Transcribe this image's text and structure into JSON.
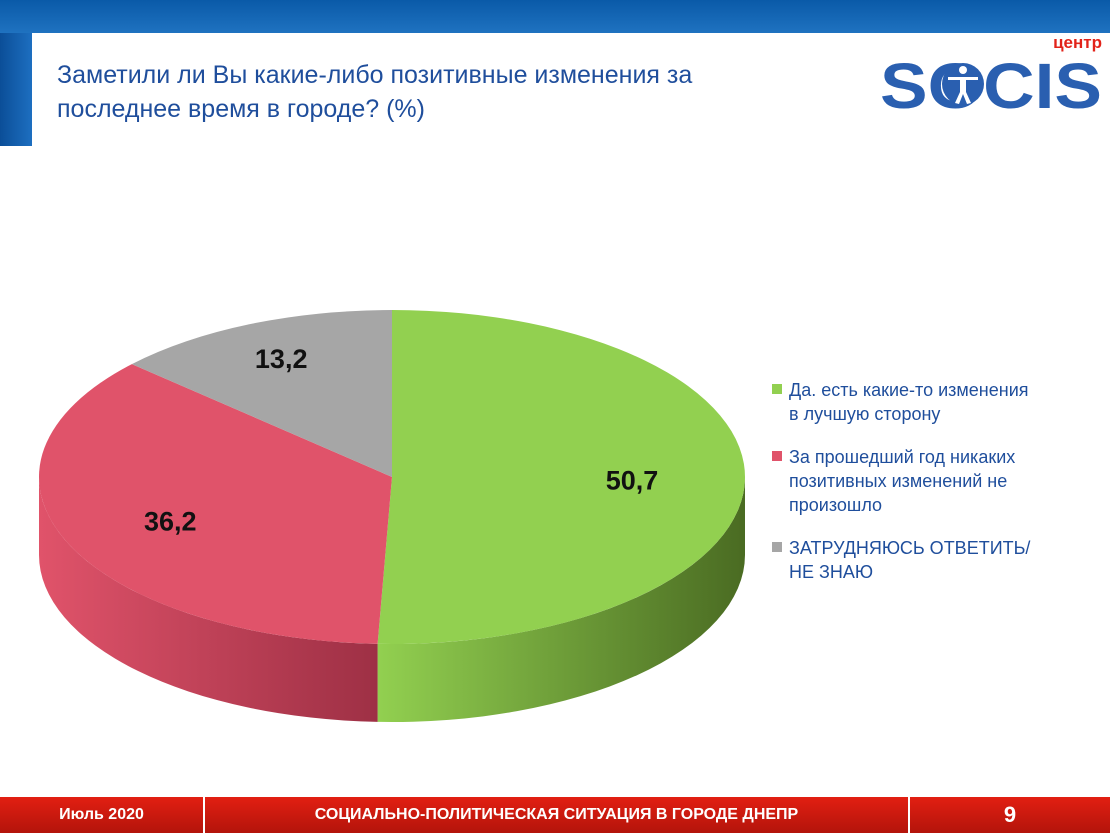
{
  "slide": {
    "title_line1": "Заметили ли Вы какие-либо позитивные изменения за",
    "title_line2": "последнее время в городе?  (%)"
  },
  "logo": {
    "top_text": "центр",
    "main_text": "SOCIS",
    "color": "#2a5fb0",
    "top_text_color": "#e2231a"
  },
  "chart_data": {
    "type": "pie",
    "title": "Заметили ли Вы какие-либо позитивные изменения за последнее время в городе?  (%)",
    "categories": [
      "Да. есть какие-то изменения в лучшую сторону",
      "За прошедший год никаких позитивных изменений не произошло",
      "ЗАТРУДНЯЮСЬ ОТВЕТИТЬ/ НЕ ЗНАЮ"
    ],
    "values": [
      50.7,
      36.2,
      13.2
    ],
    "data_labels": [
      "50,7",
      "36,2",
      "13,2"
    ],
    "colors": [
      "#92d050",
      "#e0536a",
      "#a6a6a6"
    ],
    "side_colors": [
      "#4a6b22",
      "#9e3045",
      "#6e6e6e"
    ],
    "legend_position": "right",
    "unit": "%"
  },
  "legend": {
    "items": [
      {
        "line1": "Да. есть какие-то изменения",
        "line2": "в лучшую сторону",
        "line3": "",
        "color": "#92d050"
      },
      {
        "line1": "За прошедший год никаких",
        "line2": "позитивных изменений не",
        "line3": "произошло",
        "color": "#e0536a"
      },
      {
        "line1": "ЗАТРУДНЯЮСЬ ОТВЕТИТЬ/",
        "line2": "НЕ ЗНАЮ",
        "line3": "",
        "color": "#a6a6a6"
      }
    ]
  },
  "footer": {
    "date": "Июль 2020",
    "title": "СОЦИАЛЬНО-ПОЛИТИЧЕСКАЯ СИТУАЦИЯ В ГОРОДЕ ДНЕПР",
    "page": "9"
  }
}
